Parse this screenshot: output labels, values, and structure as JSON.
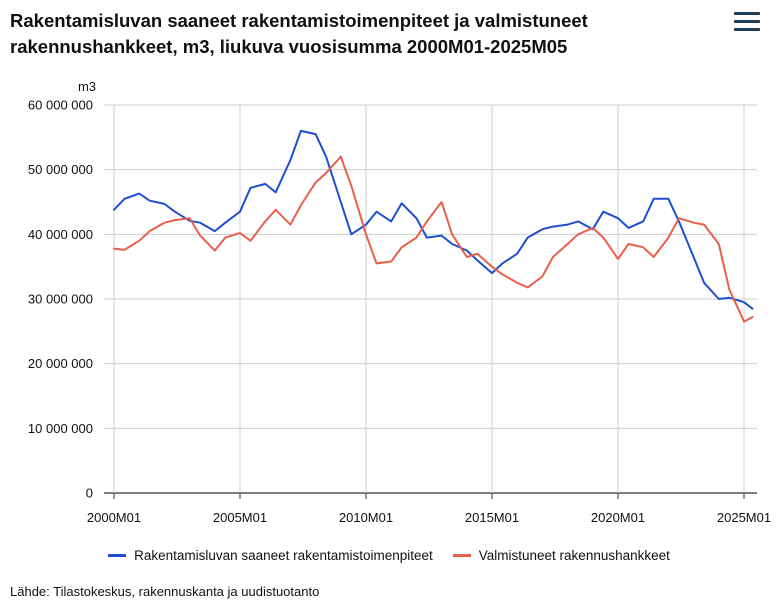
{
  "header": {
    "title": "Rakentamisluvan saaneet rakentamistoimenpiteet ja valmistuneet rakennushankkeet, m3, liukuva vuosisumma 2000M01-2025M05",
    "menu_icon": "hamburger-menu-icon"
  },
  "source": "Lähde: Tilastokeskus, rakennuskanta ja uudistuotanto",
  "chart_data": {
    "type": "line",
    "title": "Rakentamisluvan saaneet rakentamistoimenpiteet ja valmistuneet rakennushankkeet, m3, liukuva vuosisumma 2000M01-2025M05",
    "ylabel": "m3",
    "xlabel": "",
    "ylim": [
      0,
      60000000
    ],
    "yticks": [
      0,
      10000000,
      20000000,
      30000000,
      40000000,
      50000000,
      60000000
    ],
    "ytick_labels": [
      "0",
      "10 000 000",
      "20 000 000",
      "30 000 000",
      "40 000 000",
      "50 000 000",
      "60 000 000"
    ],
    "xlim": [
      "2000M01",
      "2025M05"
    ],
    "xtick_labels": [
      "2000M01",
      "2005M01",
      "2010M01",
      "2015M01",
      "2020M01",
      "2025M01"
    ],
    "grid": true,
    "legend_position": "bottom",
    "series": [
      {
        "name": "Rakentamisluvan saaneet rakentamistoimenpiteet",
        "color": "#1f4fd1",
        "points": [
          [
            "2000M01",
            43800000
          ],
          [
            "2000M06",
            45500000
          ],
          [
            "2001M01",
            46300000
          ],
          [
            "2001M06",
            45200000
          ],
          [
            "2002M01",
            44700000
          ],
          [
            "2002M06",
            43500000
          ],
          [
            "2003M01",
            42100000
          ],
          [
            "2003M06",
            41800000
          ],
          [
            "2004M01",
            40500000
          ],
          [
            "2004M06",
            41800000
          ],
          [
            "2005M01",
            43500000
          ],
          [
            "2005M06",
            47200000
          ],
          [
            "2006M01",
            47800000
          ],
          [
            "2006M06",
            46500000
          ],
          [
            "2007M01",
            51500000
          ],
          [
            "2007M06",
            56000000
          ],
          [
            "2008M01",
            55500000
          ],
          [
            "2008M06",
            52000000
          ],
          [
            "2009M01",
            45000000
          ],
          [
            "2009M06",
            40000000
          ],
          [
            "2010M01",
            41500000
          ],
          [
            "2010M06",
            43500000
          ],
          [
            "2011M01",
            42000000
          ],
          [
            "2011M06",
            44800000
          ],
          [
            "2012M01",
            42500000
          ],
          [
            "2012M06",
            39500000
          ],
          [
            "2013M01",
            39800000
          ],
          [
            "2013M06",
            38500000
          ],
          [
            "2014M01",
            37500000
          ],
          [
            "2014M06",
            36000000
          ],
          [
            "2015M01",
            34000000
          ],
          [
            "2015M06",
            35500000
          ],
          [
            "2016M01",
            37000000
          ],
          [
            "2016M06",
            39500000
          ],
          [
            "2017M01",
            40800000
          ],
          [
            "2017M06",
            41200000
          ],
          [
            "2018M01",
            41500000
          ],
          [
            "2018M06",
            42000000
          ],
          [
            "2019M01",
            40800000
          ],
          [
            "2019M06",
            43500000
          ],
          [
            "2020M01",
            42500000
          ],
          [
            "2020M06",
            41000000
          ],
          [
            "2021M01",
            42000000
          ],
          [
            "2021M06",
            45500000
          ],
          [
            "2022M01",
            45500000
          ],
          [
            "2022M06",
            42000000
          ],
          [
            "2023M01",
            36500000
          ],
          [
            "2023M06",
            32500000
          ],
          [
            "2024M01",
            30000000
          ],
          [
            "2024M06",
            30200000
          ],
          [
            "2025M01",
            29500000
          ],
          [
            "2025M05",
            28500000
          ]
        ]
      },
      {
        "name": "Valmistuneet rakennushankkeet",
        "color": "#e8604c",
        "points": [
          [
            "2000M01",
            37800000
          ],
          [
            "2000M06",
            37600000
          ],
          [
            "2001M01",
            39000000
          ],
          [
            "2001M06",
            40500000
          ],
          [
            "2002M01",
            41800000
          ],
          [
            "2002M06",
            42200000
          ],
          [
            "2003M01",
            42500000
          ],
          [
            "2003M06",
            39800000
          ],
          [
            "2004M01",
            37500000
          ],
          [
            "2004M06",
            39500000
          ],
          [
            "2005M01",
            40200000
          ],
          [
            "2005M06",
            39000000
          ],
          [
            "2006M01",
            42000000
          ],
          [
            "2006M06",
            43800000
          ],
          [
            "2007M01",
            41500000
          ],
          [
            "2007M06",
            44500000
          ],
          [
            "2008M01",
            48000000
          ],
          [
            "2008M06",
            49500000
          ],
          [
            "2009M01",
            52000000
          ],
          [
            "2009M06",
            47500000
          ],
          [
            "2010M01",
            40000000
          ],
          [
            "2010M06",
            35500000
          ],
          [
            "2011M01",
            35800000
          ],
          [
            "2011M06",
            38000000
          ],
          [
            "2012M01",
            39500000
          ],
          [
            "2012M06",
            42000000
          ],
          [
            "2013M01",
            45000000
          ],
          [
            "2013M06",
            40000000
          ],
          [
            "2014M01",
            36500000
          ],
          [
            "2014M06",
            37000000
          ],
          [
            "2015M01",
            35000000
          ],
          [
            "2015M06",
            33800000
          ],
          [
            "2016M01",
            32500000
          ],
          [
            "2016M06",
            31800000
          ],
          [
            "2017M01",
            33500000
          ],
          [
            "2017M06",
            36500000
          ],
          [
            "2018M01",
            38500000
          ],
          [
            "2018M06",
            40000000
          ],
          [
            "2019M01",
            41000000
          ],
          [
            "2019M06",
            39500000
          ],
          [
            "2020M01",
            36200000
          ],
          [
            "2020M06",
            38500000
          ],
          [
            "2021M01",
            38000000
          ],
          [
            "2021M06",
            36500000
          ],
          [
            "2022M01",
            39500000
          ],
          [
            "2022M06",
            42500000
          ],
          [
            "2023M01",
            41800000
          ],
          [
            "2023M06",
            41500000
          ],
          [
            "2024M01",
            38500000
          ],
          [
            "2024M06",
            31500000
          ],
          [
            "2025M01",
            26500000
          ],
          [
            "2025M05",
            27200000
          ]
        ]
      }
    ]
  }
}
